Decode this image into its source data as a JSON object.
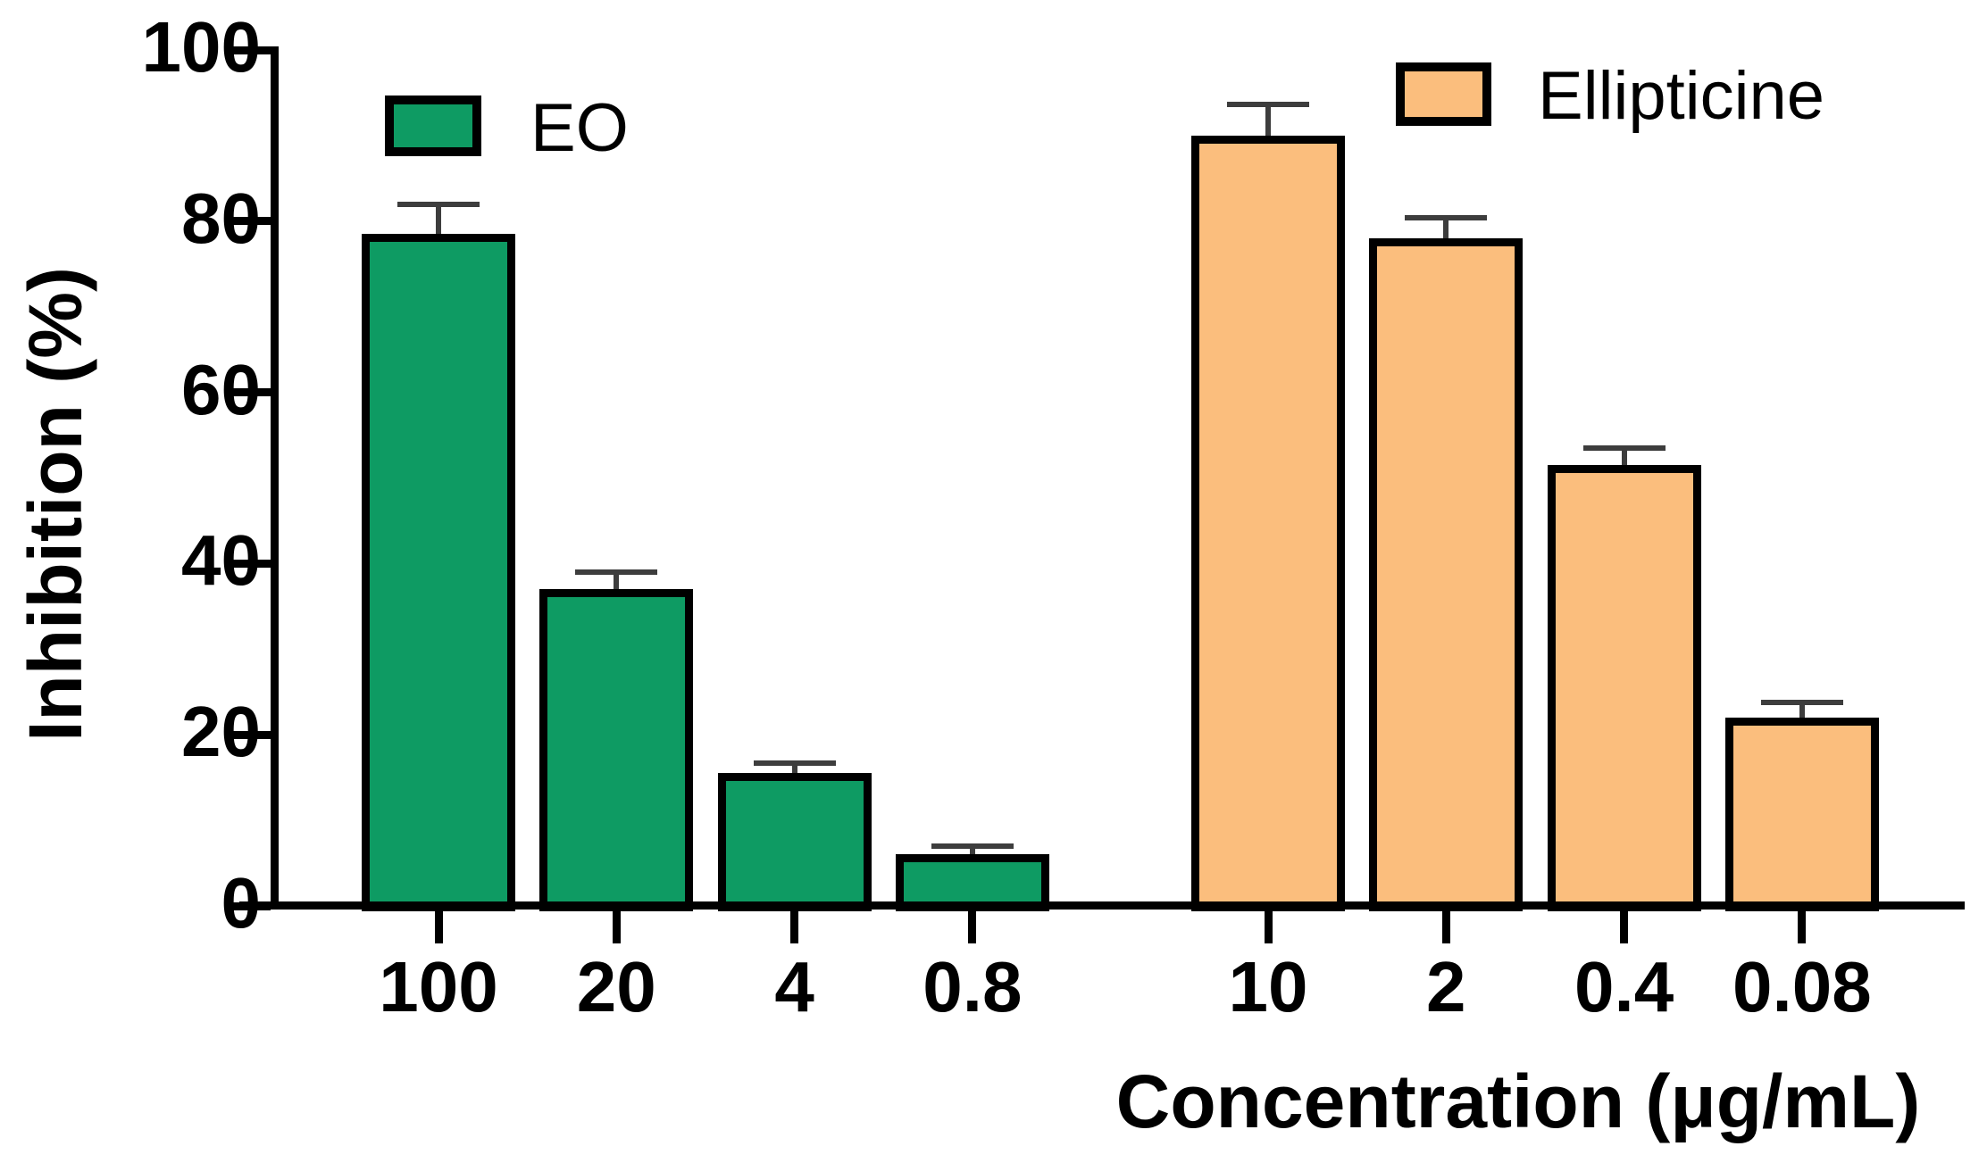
{
  "chart_data": {
    "type": "bar",
    "title": "",
    "xlabel": "Concentration (μg/mL)",
    "ylabel": "Inhibition (%)",
    "ylim": [
      0,
      100
    ],
    "yticks": [
      0,
      20,
      40,
      60,
      80,
      100
    ],
    "grid": false,
    "legend_position": "top",
    "bar_outline_color": "#000000",
    "error_bar_color": "#3d3d3d",
    "series": [
      {
        "name": "EO",
        "color": "#0e9b63",
        "categories": [
          "100",
          "20",
          "4",
          "0.8"
        ],
        "values": [
          78.5,
          37,
          15.5,
          6
        ],
        "errors": [
          3.5,
          2,
          1.2,
          1
        ]
      },
      {
        "name": "Ellipticine",
        "color": "#fbbe7d",
        "categories": [
          "10",
          "2",
          "0.4",
          "0.08"
        ],
        "values": [
          90,
          78,
          51.5,
          22
        ],
        "errors": [
          3.6,
          2.4,
          2,
          1.8
        ]
      }
    ]
  }
}
